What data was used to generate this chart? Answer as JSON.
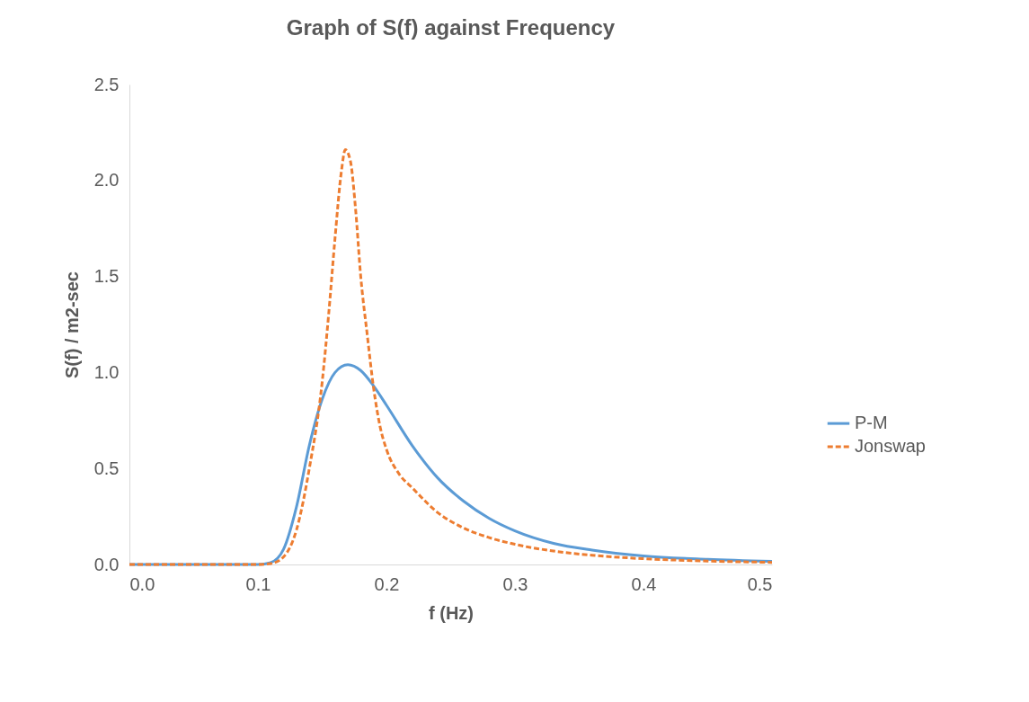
{
  "chart_data": {
    "type": "line",
    "title": "Graph of S(f) against Frequency",
    "xlabel": "f (Hz)",
    "ylabel": "S(f) / m2-sec",
    "xlim": [
      0,
      0.5
    ],
    "xticks": [
      {
        "value": 0,
        "label": "0.0"
      },
      0.1,
      0.2,
      0.3,
      0.4,
      0.5
    ],
    "ylim": [
      0,
      2.5
    ],
    "yticks": [
      {
        "value": 0,
        "label": "0.0"
      },
      0.5,
      {
        "value": 1,
        "label": "1.0"
      },
      1.5,
      {
        "value": 2,
        "label": "2.0"
      },
      2.5
    ],
    "grid": false,
    "legend": "right",
    "marker": "none",
    "series": [
      {
        "name": "P-M",
        "color": "#5b9bd5",
        "line_style": "solid",
        "x": [
          0,
          0.05,
          0.1,
          0.11,
          0.12,
          0.13,
          0.14,
          0.15,
          0.16,
          0.17,
          0.18,
          0.19,
          0.2,
          0.22,
          0.24,
          0.26,
          0.28,
          0.3,
          0.33,
          0.36,
          0.4,
          0.45,
          0.5
        ],
        "values": [
          0,
          0,
          0,
          0.01,
          0.08,
          0.3,
          0.62,
          0.86,
          1.0,
          1.04,
          1.01,
          0.93,
          0.83,
          0.62,
          0.45,
          0.33,
          0.24,
          0.175,
          0.11,
          0.075,
          0.045,
          0.027,
          0.016
        ]
      },
      {
        "name": "Jonswap",
        "color": "#ed7d31",
        "line_style": "dashed",
        "x": [
          0,
          0.05,
          0.1,
          0.11,
          0.12,
          0.13,
          0.14,
          0.15,
          0.155,
          0.16,
          0.165,
          0.168,
          0.172,
          0.176,
          0.18,
          0.185,
          0.19,
          0.195,
          0.2,
          0.21,
          0.22,
          0.24,
          0.26,
          0.28,
          0.3,
          0.33,
          0.36,
          0.4,
          0.45,
          0.5
        ],
        "values": [
          0,
          0,
          0,
          0.005,
          0.04,
          0.18,
          0.5,
          0.95,
          1.3,
          1.7,
          2.05,
          2.16,
          2.1,
          1.85,
          1.5,
          1.2,
          0.92,
          0.72,
          0.6,
          0.47,
          0.4,
          0.27,
          0.19,
          0.14,
          0.105,
          0.07,
          0.048,
          0.03,
          0.018,
          0.011
        ]
      }
    ]
  }
}
